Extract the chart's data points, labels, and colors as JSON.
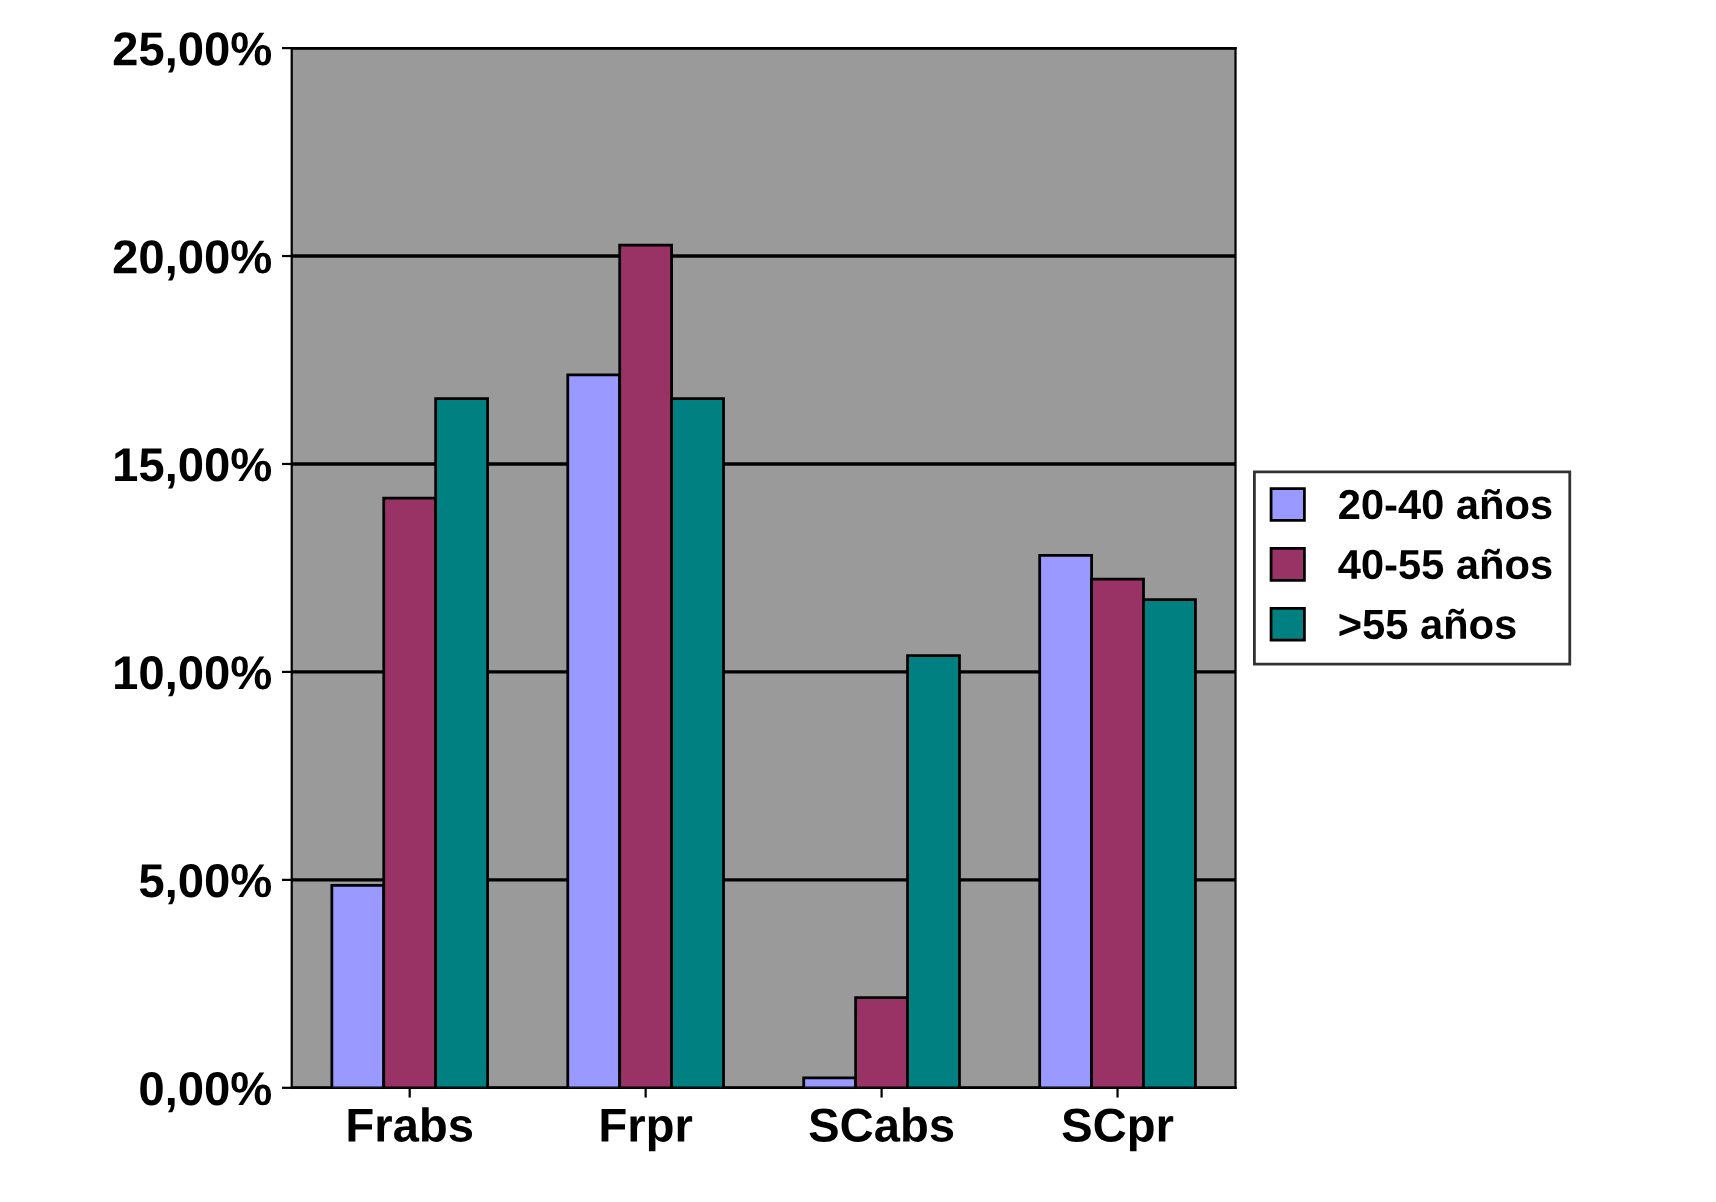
{
  "chart_data": {
    "type": "bar",
    "categories": [
      "Frabs",
      "Frpr",
      "SCabs",
      "SCpr"
    ],
    "series": [
      {
        "name": "20-40 años",
        "color": "#9999ff",
        "values": [
          4.87,
          17.14,
          0.24,
          12.8
        ]
      },
      {
        "name": "40-55 años",
        "color": "#993366",
        "values": [
          14.18,
          20.26,
          2.17,
          12.23
        ]
      },
      {
        "name": ">55 años",
        "color": "#008080",
        "values": [
          16.57,
          16.57,
          10.39,
          11.74
        ]
      }
    ],
    "ylim": [
      0,
      25
    ],
    "yticks": [
      {
        "value": 0,
        "label": "0,00%"
      },
      {
        "value": 5,
        "label": "5,00%"
      },
      {
        "value": 10,
        "label": "10,00%"
      },
      {
        "value": 15,
        "label": "15,00%"
      },
      {
        "value": 20,
        "label": "20,00%"
      },
      {
        "value": 25,
        "label": "25,00%"
      }
    ],
    "grid": "y",
    "legend": "right"
  }
}
